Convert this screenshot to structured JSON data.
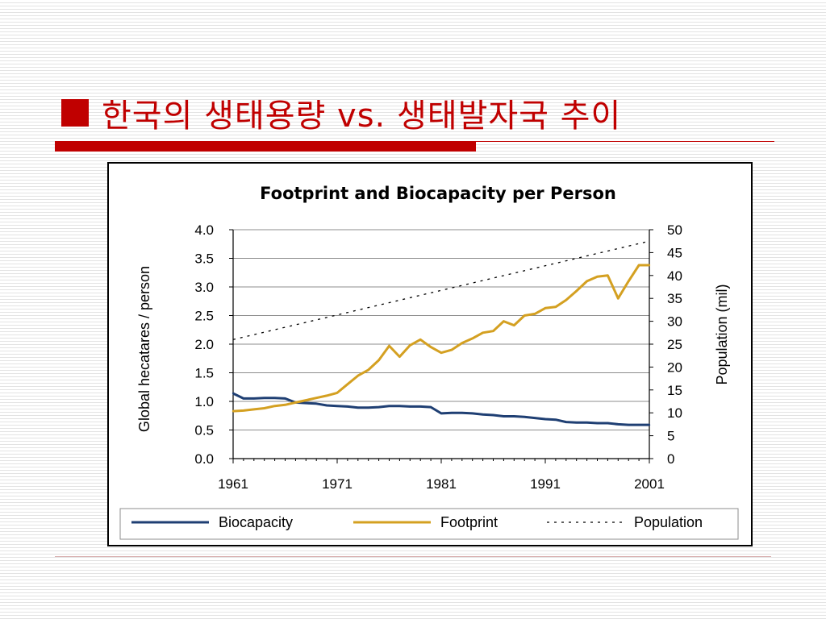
{
  "slide": {
    "title": "한국의 생태용량 vs. 생태발자국 추이",
    "accent_color": "#c00000",
    "bullet_icon": "square-bullet"
  },
  "chart_data": {
    "type": "line",
    "title": "Footprint and Biocapacity per Person",
    "ylabel": "Global hecatares / person",
    "y2label": "Population (mil)",
    "ylim": [
      0,
      4
    ],
    "y2lim": [
      0,
      50
    ],
    "yticks": [
      "4.0",
      "3.5",
      "3.0",
      "2.5",
      "2.0",
      "1.5",
      "1.0",
      "0.5",
      "0.0"
    ],
    "y2ticks": [
      "50",
      "45",
      "40",
      "35",
      "30",
      "25",
      "20",
      "15",
      "10",
      "5",
      "0"
    ],
    "xticks": [
      "1961",
      "1971",
      "1981",
      "1991",
      "2001"
    ],
    "xlim": [
      1961,
      2001
    ],
    "grid": true,
    "legend_position": "bottom",
    "series": [
      {
        "name": "Biocapacity",
        "axis": "left",
        "color": "#1f3f73",
        "style": "solid",
        "x": [
          1961,
          1962,
          1963,
          1964,
          1965,
          1966,
          1967,
          1968,
          1969,
          1970,
          1971,
          1972,
          1973,
          1974,
          1975,
          1976,
          1977,
          1978,
          1979,
          1980,
          1981,
          1982,
          1983,
          1984,
          1985,
          1986,
          1987,
          1988,
          1989,
          1990,
          1991,
          1992,
          1993,
          1994,
          1995,
          1996,
          1997,
          1998,
          1999,
          2000,
          2001
        ],
        "values": [
          1.14,
          1.05,
          1.05,
          1.06,
          1.06,
          1.05,
          0.98,
          0.97,
          0.96,
          0.93,
          0.92,
          0.91,
          0.89,
          0.89,
          0.9,
          0.92,
          0.92,
          0.91,
          0.91,
          0.9,
          0.79,
          0.8,
          0.8,
          0.79,
          0.77,
          0.76,
          0.74,
          0.74,
          0.73,
          0.71,
          0.69,
          0.68,
          0.64,
          0.63,
          0.63,
          0.62,
          0.62,
          0.6,
          0.59,
          0.59,
          0.59
        ]
      },
      {
        "name": "Footprint",
        "axis": "left",
        "color": "#d4a021",
        "style": "solid",
        "x": [
          1961,
          1962,
          1963,
          1964,
          1965,
          1966,
          1967,
          1968,
          1969,
          1970,
          1971,
          1972,
          1973,
          1974,
          1975,
          1976,
          1977,
          1978,
          1979,
          1980,
          1981,
          1982,
          1983,
          1984,
          1985,
          1986,
          1987,
          1988,
          1989,
          1990,
          1991,
          1992,
          1993,
          1994,
          1995,
          1996,
          1997,
          1998,
          1999,
          2000,
          2001
        ],
        "values": [
          0.83,
          0.84,
          0.86,
          0.88,
          0.92,
          0.94,
          0.98,
          1.02,
          1.06,
          1.1,
          1.15,
          1.3,
          1.45,
          1.55,
          1.72,
          1.97,
          1.78,
          1.98,
          2.08,
          1.95,
          1.85,
          1.9,
          2.02,
          2.1,
          2.2,
          2.23,
          2.4,
          2.33,
          2.5,
          2.53,
          2.63,
          2.65,
          2.77,
          2.93,
          3.1,
          3.18,
          3.2,
          2.8,
          3.1,
          3.38,
          3.38
        ]
      },
      {
        "name": "Population",
        "axis": "right",
        "color": "#000000",
        "style": "dotted",
        "x": [
          1961,
          2001
        ],
        "values": [
          26,
          47.5
        ]
      }
    ]
  }
}
